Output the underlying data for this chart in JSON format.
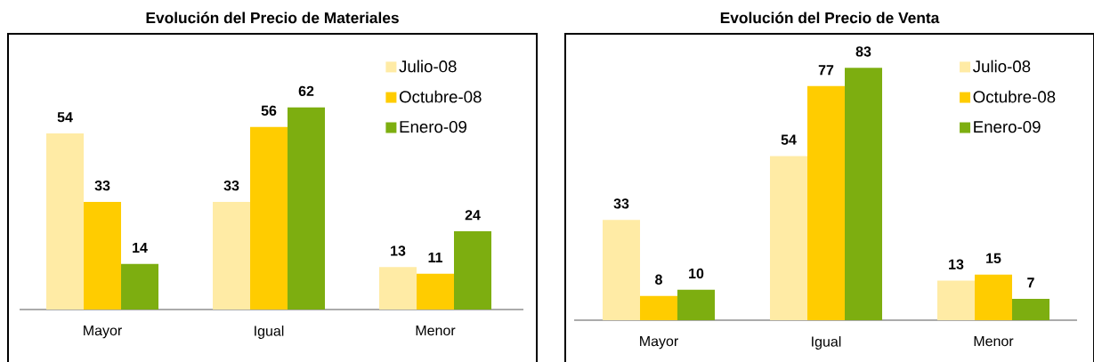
{
  "chart_data": [
    {
      "type": "bar",
      "title": "Evolución del Precio de Materiales",
      "categories": [
        "Mayor",
        "Igual",
        "Menor"
      ],
      "series": [
        {
          "name": "Julio-08",
          "color": "#ffeba5",
          "values": [
            54,
            33,
            13
          ]
        },
        {
          "name": "Octubre-08",
          "color": "#ffcc00",
          "values": [
            33,
            56,
            11
          ]
        },
        {
          "name": "Enero-09",
          "color": "#7dae10",
          "values": [
            14,
            62,
            24
          ]
        }
      ],
      "data_labels": true,
      "legend": "top right",
      "grid": false
    },
    {
      "type": "bar",
      "title": "Evolución del Precio de Venta",
      "categories": [
        "Mayor",
        "Igual",
        "Menor"
      ],
      "series": [
        {
          "name": "Julio-08",
          "color": "#ffeba5",
          "values": [
            33,
            54,
            13
          ]
        },
        {
          "name": "Octubre-08",
          "color": "#ffcc00",
          "values": [
            8,
            77,
            15
          ]
        },
        {
          "name": "Enero-09",
          "color": "#7dae10",
          "values": [
            10,
            83,
            7
          ]
        }
      ],
      "data_labels": true,
      "legend": "top right",
      "grid": false
    }
  ]
}
